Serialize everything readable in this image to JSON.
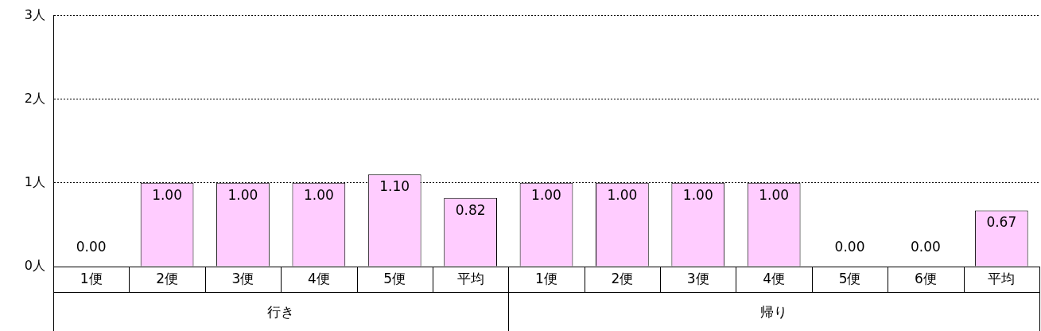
{
  "chart_data": {
    "type": "bar",
    "categories": [
      "1便",
      "2便",
      "3便",
      "4便",
      "5便",
      "平均",
      "1便",
      "2便",
      "3便",
      "4便",
      "5便",
      "6便",
      "平均"
    ],
    "values": [
      0,
      1,
      1,
      1,
      1.1,
      0.82,
      1,
      1,
      1,
      1,
      0,
      0,
      0.67
    ],
    "value_labels": [
      "0.00",
      "1.00",
      "1.00",
      "1.00",
      "1.10",
      "0.82",
      "1.00",
      "1.00",
      "1.00",
      "1.00",
      "0.00",
      "0.00",
      "0.67"
    ],
    "color": "#ffccff",
    "ylim": [
      0,
      3
    ],
    "yticks": [
      {
        "value": 0,
        "label": "0人"
      },
      {
        "value": 1,
        "label": "1人"
      },
      {
        "value": 2,
        "label": "2人"
      },
      {
        "value": 3,
        "label": "3人"
      }
    ],
    "grid": "y",
    "annotations": [
      "行き",
      "帰り"
    ]
  }
}
